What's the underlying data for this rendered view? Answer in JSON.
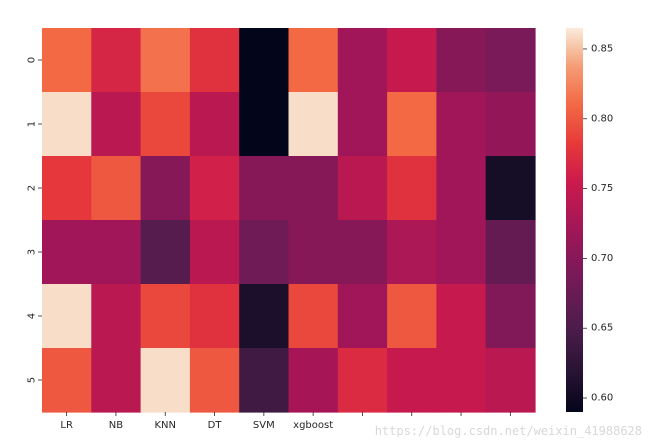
{
  "chart_data": {
    "type": "heatmap",
    "title": "",
    "xlabel": "",
    "ylabel": "",
    "x_categories": [
      "LR",
      "NB",
      "KNN",
      "DT",
      "SVM",
      "xgboost",
      "",
      "",
      "",
      ""
    ],
    "y_categories": [
      "0",
      "1",
      "2",
      "3",
      "4",
      "5"
    ],
    "values": [
      [
        0.81,
        0.765,
        0.815,
        0.775,
        0.59,
        0.81,
        0.72,
        0.75,
        0.7,
        0.69
      ],
      [
        0.86,
        0.74,
        0.79,
        0.74,
        0.59,
        0.86,
        0.72,
        0.81,
        0.72,
        0.71
      ],
      [
        0.78,
        0.8,
        0.7,
        0.76,
        0.7,
        0.7,
        0.74,
        0.775,
        0.72,
        0.605
      ],
      [
        0.72,
        0.72,
        0.66,
        0.74,
        0.68,
        0.7,
        0.7,
        0.73,
        0.72,
        0.67
      ],
      [
        0.86,
        0.74,
        0.79,
        0.775,
        0.61,
        0.79,
        0.72,
        0.8,
        0.75,
        0.695
      ],
      [
        0.8,
        0.74,
        0.86,
        0.8,
        0.64,
        0.725,
        0.77,
        0.75,
        0.75,
        0.74
      ]
    ],
    "vmin": 0.59,
    "vmax": 0.865,
    "colorbar_ticks": [
      0.6,
      0.65,
      0.7,
      0.75,
      0.8,
      0.85
    ],
    "colorbar_tick_labels": [
      "0.60",
      "0.65",
      "0.70",
      "0.75",
      "0.80",
      "0.85"
    ],
    "colormap": "rocket",
    "legend": "colorbar-right",
    "grid": false
  },
  "watermark": "https://blog.csdn.net/weixin_41988628"
}
